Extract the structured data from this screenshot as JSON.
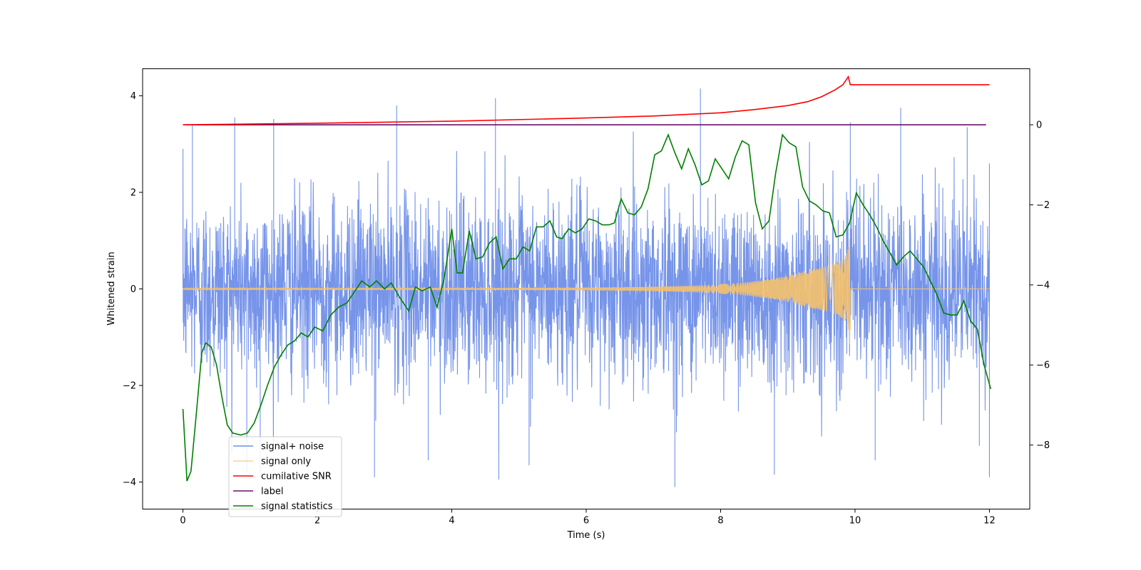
{
  "chart_data": {
    "type": "line",
    "xlabel": "Time (s)",
    "ylabel": "Whitened strain",
    "y2label": "",
    "xlim": [
      -0.6,
      12.6
    ],
    "ylim": [
      -4.56,
      4.56
    ],
    "y2lim": [
      -9.6,
      1.4
    ],
    "xticks": [
      0,
      2,
      4,
      6,
      8,
      10,
      12
    ],
    "xtick_labels": [
      "0",
      "2",
      "4",
      "6",
      "8",
      "10",
      "12"
    ],
    "yticks": [
      -4,
      -2,
      0,
      2,
      4
    ],
    "ytick_labels": [
      "−4",
      "−2",
      "0",
      "2",
      "4"
    ],
    "y2ticks": [
      -8,
      -6,
      -4,
      -2,
      0
    ],
    "y2tick_labels": [
      "−8",
      "−6",
      "−4",
      "−2",
      "0"
    ],
    "grid": false,
    "legend_position": "lower-left",
    "series": [
      {
        "name": "signal+ noise",
        "axis": "left",
        "color": "#6f8ee8",
        "note_style": "dense gaussian-like noise, roughly ±2.5 with spikes to ±4",
        "sample_points": [
          [
            0,
            0.3
          ],
          [
            2,
            -0.2
          ],
          [
            4,
            0.1
          ],
          [
            6,
            0.4
          ],
          [
            8,
            -0.3
          ],
          [
            10,
            0.2
          ],
          [
            12,
            -0.1
          ]
        ],
        "envelope_points": [
          [
            0,
            2.9
          ],
          [
            0.14,
            3.4
          ],
          [
            0.77,
            3.55
          ],
          [
            1.35,
            3.52
          ],
          [
            3.18,
            3.8
          ],
          [
            4.65,
            3.95
          ],
          [
            7.7,
            4.15
          ],
          [
            9.93,
            3.45
          ],
          [
            10.68,
            3.75
          ],
          [
            11.67,
            3.35
          ],
          [
            12,
            2.6
          ]
        ],
        "trough_points": [
          [
            0.95,
            -3.8
          ],
          [
            1.15,
            -3.9
          ],
          [
            2.85,
            -3.9
          ],
          [
            3.65,
            -3.55
          ],
          [
            4.7,
            -3.95
          ],
          [
            5.15,
            -3.65
          ],
          [
            7.32,
            -4.1
          ],
          [
            8.8,
            -3.85
          ],
          [
            10.3,
            -3.55
          ],
          [
            11.85,
            -3.25
          ],
          [
            12,
            -3.9
          ]
        ]
      },
      {
        "name": "signal only",
        "axis": "left",
        "color": "#f5c16c",
        "chirp": {
          "start": 0,
          "end": 9.93,
          "peak_amplitude": 1.55,
          "final_zero_after": 9.93
        }
      },
      {
        "name": "cumilative SNR",
        "axis": "right",
        "color": "#ff0000",
        "points": [
          [
            0,
            0.0
          ],
          [
            2,
            0.04
          ],
          [
            4,
            0.09
          ],
          [
            6,
            0.17
          ],
          [
            7,
            0.22
          ],
          [
            8,
            0.3
          ],
          [
            8.5,
            0.38
          ],
          [
            9,
            0.48
          ],
          [
            9.3,
            0.58
          ],
          [
            9.5,
            0.7
          ],
          [
            9.7,
            0.87
          ],
          [
            9.82,
            1.0
          ],
          [
            9.9,
            1.2
          ],
          [
            9.93,
            1.0
          ],
          [
            9.94,
            1.0
          ],
          [
            12,
            1.0
          ]
        ]
      },
      {
        "name": "label",
        "axis": "right",
        "color": "#6a0f6a",
        "points": [
          [
            0,
            0.0
          ],
          [
            11.95,
            0.0
          ]
        ]
      },
      {
        "name": "signal statistics",
        "axis": "right",
        "color": "#008000",
        "points": [
          [
            0,
            -7.1
          ],
          [
            0.06,
            -8.9
          ],
          [
            0.12,
            -8.65
          ],
          [
            0.2,
            -7.2
          ],
          [
            0.28,
            -5.7
          ],
          [
            0.34,
            -5.45
          ],
          [
            0.42,
            -5.55
          ],
          [
            0.5,
            -6.0
          ],
          [
            0.58,
            -6.8
          ],
          [
            0.66,
            -7.5
          ],
          [
            0.74,
            -7.7
          ],
          [
            0.86,
            -7.75
          ],
          [
            0.96,
            -7.7
          ],
          [
            1.06,
            -7.45
          ],
          [
            1.16,
            -7.0
          ],
          [
            1.26,
            -6.5
          ],
          [
            1.36,
            -6.05
          ],
          [
            1.46,
            -5.75
          ],
          [
            1.56,
            -5.5
          ],
          [
            1.66,
            -5.4
          ],
          [
            1.76,
            -5.2
          ],
          [
            1.86,
            -5.3
          ],
          [
            1.96,
            -5.05
          ],
          [
            2.08,
            -5.15
          ],
          [
            2.2,
            -4.75
          ],
          [
            2.32,
            -4.55
          ],
          [
            2.44,
            -4.45
          ],
          [
            2.56,
            -4.15
          ],
          [
            2.66,
            -3.9
          ],
          [
            2.78,
            -4.05
          ],
          [
            2.88,
            -3.9
          ],
          [
            3.0,
            -4.1
          ],
          [
            3.1,
            -3.95
          ],
          [
            3.22,
            -4.3
          ],
          [
            3.36,
            -4.65
          ],
          [
            3.46,
            -4.05
          ],
          [
            3.56,
            -4.15
          ],
          [
            3.68,
            -4.05
          ],
          [
            3.78,
            -4.55
          ],
          [
            3.88,
            -3.9
          ],
          [
            4.0,
            -2.6
          ],
          [
            4.08,
            -3.7
          ],
          [
            4.16,
            -3.7
          ],
          [
            4.26,
            -2.65
          ],
          [
            4.36,
            -3.35
          ],
          [
            4.46,
            -3.3
          ],
          [
            4.56,
            -2.95
          ],
          [
            4.66,
            -2.8
          ],
          [
            4.76,
            -3.6
          ],
          [
            4.86,
            -3.35
          ],
          [
            4.96,
            -3.35
          ],
          [
            5.06,
            -3.05
          ],
          [
            5.16,
            -3.15
          ],
          [
            5.26,
            -2.55
          ],
          [
            5.36,
            -2.55
          ],
          [
            5.46,
            -2.4
          ],
          [
            5.56,
            -2.8
          ],
          [
            5.64,
            -2.85
          ],
          [
            5.74,
            -2.6
          ],
          [
            5.84,
            -2.7
          ],
          [
            5.94,
            -2.6
          ],
          [
            6.04,
            -2.35
          ],
          [
            6.14,
            -2.4
          ],
          [
            6.24,
            -2.5
          ],
          [
            6.34,
            -2.5
          ],
          [
            6.42,
            -2.45
          ],
          [
            6.52,
            -1.85
          ],
          [
            6.62,
            -2.2
          ],
          [
            6.72,
            -2.25
          ],
          [
            6.82,
            -2.05
          ],
          [
            6.92,
            -1.6
          ],
          [
            7.02,
            -0.75
          ],
          [
            7.12,
            -0.65
          ],
          [
            7.22,
            -0.25
          ],
          [
            7.32,
            -0.7
          ],
          [
            7.42,
            -1.1
          ],
          [
            7.52,
            -0.6
          ],
          [
            7.62,
            -1.0
          ],
          [
            7.72,
            -1.5
          ],
          [
            7.82,
            -1.4
          ],
          [
            7.92,
            -0.85
          ],
          [
            8.02,
            -1.1
          ],
          [
            8.12,
            -1.35
          ],
          [
            8.22,
            -0.8
          ],
          [
            8.32,
            -0.4
          ],
          [
            8.42,
            -0.5
          ],
          [
            8.52,
            -1.95
          ],
          [
            8.62,
            -2.6
          ],
          [
            8.72,
            -2.4
          ],
          [
            8.82,
            -1.2
          ],
          [
            8.92,
            -0.25
          ],
          [
            9.02,
            -0.45
          ],
          [
            9.12,
            -0.55
          ],
          [
            9.22,
            -1.55
          ],
          [
            9.32,
            -1.9
          ],
          [
            9.42,
            -2.0
          ],
          [
            9.52,
            -2.15
          ],
          [
            9.62,
            -2.2
          ],
          [
            9.72,
            -2.8
          ],
          [
            9.82,
            -2.75
          ],
          [
            9.92,
            -2.45
          ],
          [
            10.02,
            -1.7
          ],
          [
            10.12,
            -2.0
          ],
          [
            10.22,
            -2.25
          ],
          [
            10.32,
            -2.55
          ],
          [
            10.42,
            -2.9
          ],
          [
            10.52,
            -3.2
          ],
          [
            10.62,
            -3.5
          ],
          [
            10.72,
            -3.3
          ],
          [
            10.82,
            -3.15
          ],
          [
            10.92,
            -3.35
          ],
          [
            11.02,
            -3.55
          ],
          [
            11.12,
            -3.9
          ],
          [
            11.22,
            -4.25
          ],
          [
            11.32,
            -4.7
          ],
          [
            11.42,
            -4.75
          ],
          [
            11.52,
            -4.75
          ],
          [
            11.62,
            -4.4
          ],
          [
            11.72,
            -4.9
          ],
          [
            11.82,
            -5.1
          ],
          [
            11.92,
            -6.0
          ],
          [
            12.02,
            -6.6
          ]
        ]
      }
    ],
    "legend": [
      "signal+ noise",
      "signal only",
      "cumilative SNR",
      "label",
      "signal statistics"
    ]
  }
}
